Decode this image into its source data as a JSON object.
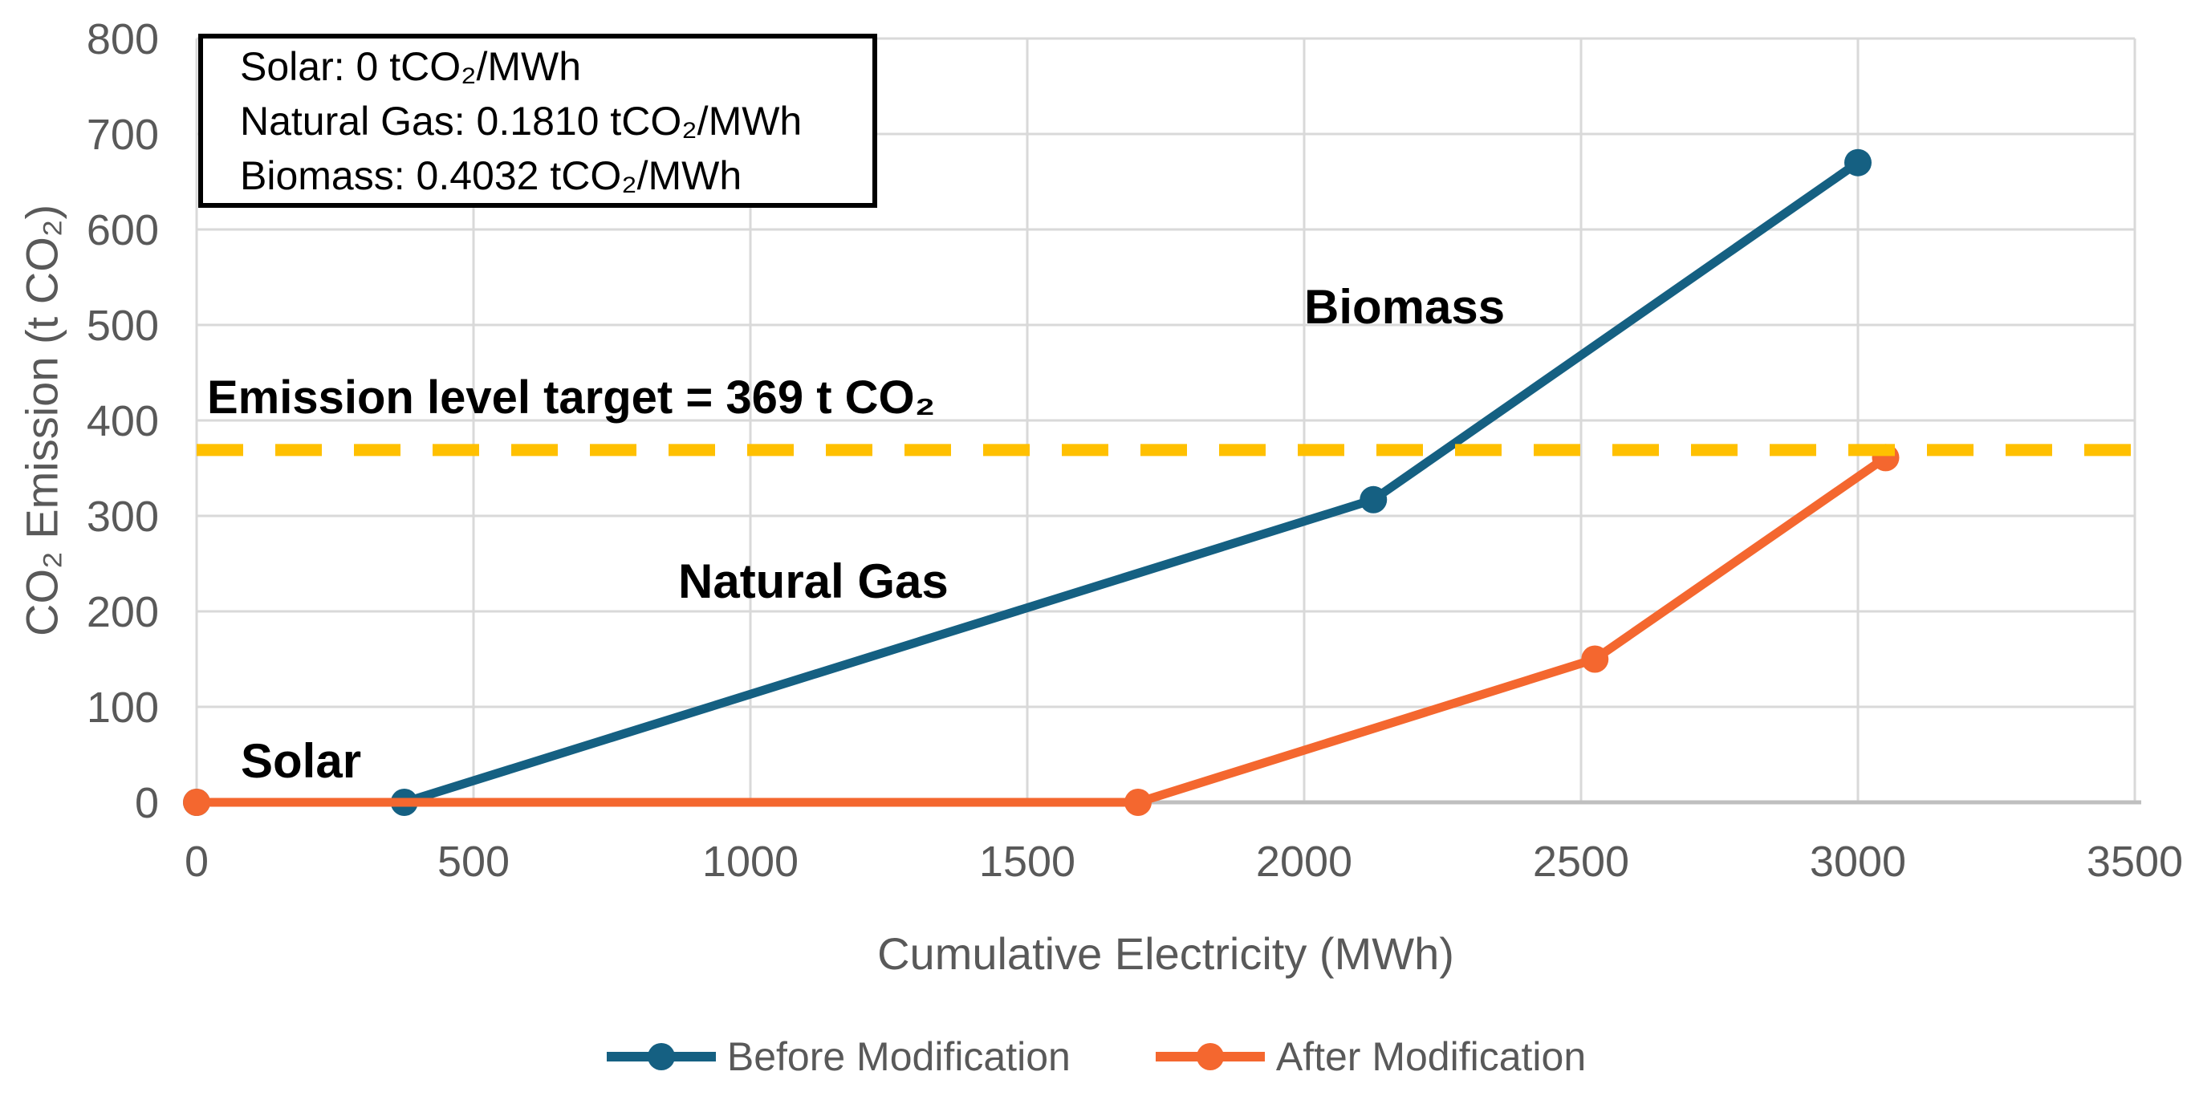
{
  "chart_data": {
    "type": "line",
    "title": "",
    "xlabel": "Cumulative Electricity (MWh)",
    "ylabel": "CO₂ Emission (t CO₂)",
    "x_ticks": [
      0,
      500,
      1000,
      1500,
      2000,
      2500,
      3000,
      3500
    ],
    "y_ticks": [
      0,
      100,
      200,
      300,
      400,
      500,
      600,
      700,
      800
    ],
    "xlim": [
      0,
      3500
    ],
    "ylim": [
      0,
      800
    ],
    "grid": true,
    "legend_position": "bottom",
    "series": [
      {
        "name": "Before Modification",
        "color": "#156082",
        "points": [
          [
            0,
            0
          ],
          [
            375,
            0
          ],
          [
            2125,
            317
          ],
          [
            3000,
            670
          ]
        ]
      },
      {
        "name": "After Modification",
        "color": "#F4672F",
        "points": [
          [
            0,
            0
          ],
          [
            1700,
            0
          ],
          [
            2525,
            150
          ],
          [
            3050,
            361
          ]
        ]
      }
    ],
    "target_line": {
      "value": 369,
      "color": "#FFC000",
      "label": "Emission level target = 369 t CO₂"
    },
    "annotations": [
      {
        "text": "Solar"
      },
      {
        "text": "Natural Gas"
      },
      {
        "text": "Biomass"
      }
    ],
    "info_box": {
      "lines": [
        "Solar: 0 tCO₂/MWh",
        "Natural Gas: 0.1810 tCO₂/MWh",
        "Biomass: 0.4032 tCO₂/MWh"
      ]
    }
  },
  "colors": {
    "gridline": "#D9D9D9",
    "axis_line": "#BFBFBF",
    "tick_text": "#595959",
    "annotation_text": "#000000"
  }
}
